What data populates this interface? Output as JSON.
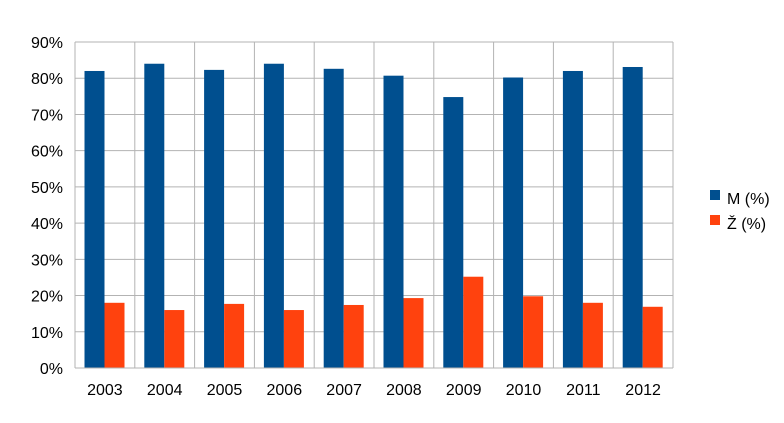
{
  "chart_data": {
    "type": "bar",
    "categories": [
      "2003",
      "2004",
      "2005",
      "2006",
      "2007",
      "2008",
      "2009",
      "2010",
      "2011",
      "2012"
    ],
    "series": [
      {
        "name": "M (%)",
        "color": "#004F8F",
        "values": [
          82,
          84,
          82.3,
          84,
          82.6,
          80.7,
          74.8,
          80.2,
          82,
          83.1
        ]
      },
      {
        "name": "Ž (%)",
        "color": "#FF420E",
        "values": [
          18,
          16,
          17.7,
          16,
          17.4,
          19.3,
          25.2,
          19.8,
          18,
          16.9
        ]
      }
    ],
    "y_ticks": [
      "0%",
      "10%",
      "20%",
      "30%",
      "40%",
      "50%",
      "60%",
      "70%",
      "80%",
      "90%"
    ],
    "ylim": [
      0,
      90
    ],
    "grid": true,
    "legend_position": "right"
  }
}
